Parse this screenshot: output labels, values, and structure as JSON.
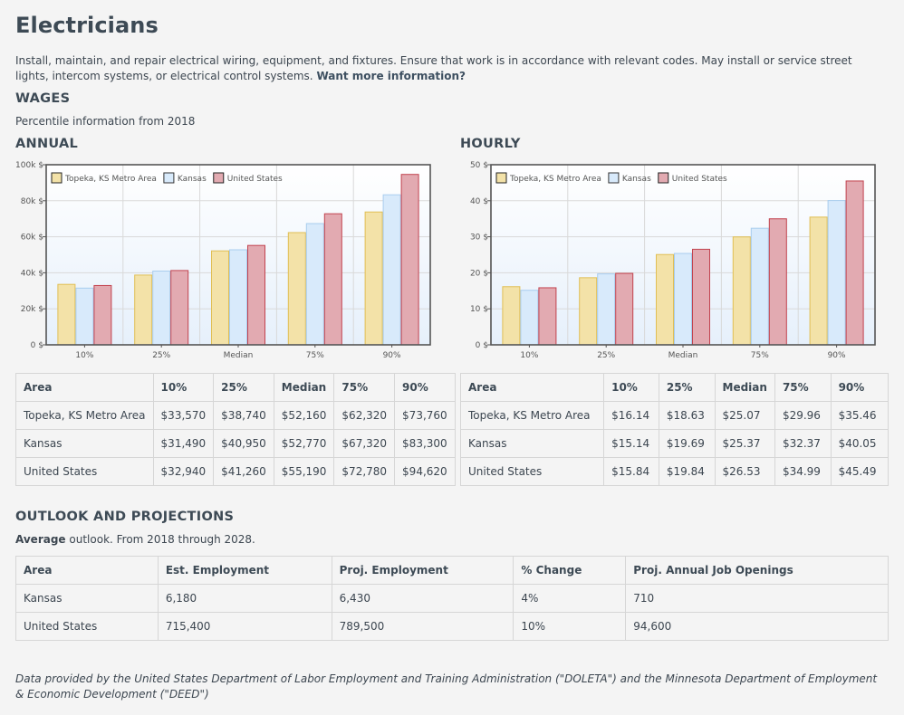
{
  "title": "Electricians",
  "description": "Install, maintain, and repair electrical wiring, equipment, and fixtures. Ensure that work is in accordance with relevant codes. May install or service street lights, intercom systems, or electrical control systems.",
  "more_info_link": "Want more information?",
  "wages": {
    "heading": "WAGES",
    "note": "Percentile information from 2018",
    "annual_heading": "ANNUAL",
    "hourly_heading": "HOURLY",
    "columns": [
      "Area",
      "10%",
      "25%",
      "Median",
      "75%",
      "90%"
    ],
    "annual_rows": [
      [
        "Topeka, KS Metro Area",
        "$33,570",
        "$38,740",
        "$52,160",
        "$62,320",
        "$73,760"
      ],
      [
        "Kansas",
        "$31,490",
        "$40,950",
        "$52,770",
        "$67,320",
        "$83,300"
      ],
      [
        "United States",
        "$32,940",
        "$41,260",
        "$55,190",
        "$72,780",
        "$94,620"
      ]
    ],
    "hourly_rows": [
      [
        "Topeka, KS Metro Area",
        "$16.14",
        "$18.63",
        "$25.07",
        "$29.96",
        "$35.46"
      ],
      [
        "Kansas",
        "$15.14",
        "$19.69",
        "$25.37",
        "$32.37",
        "$40.05"
      ],
      [
        "United States",
        "$15.84",
        "$19.84",
        "$26.53",
        "$34.99",
        "$45.49"
      ]
    ]
  },
  "outlook": {
    "heading": "OUTLOOK AND PROJECTIONS",
    "lead_bold": "Average",
    "lead_rest": " outlook. From 2018 through 2028.",
    "columns": [
      "Area",
      "Est. Employment",
      "Proj. Employment",
      "% Change",
      "Proj. Annual Job Openings"
    ],
    "rows": [
      [
        "Kansas",
        "6,180",
        "6,430",
        "4%",
        "710"
      ],
      [
        "United States",
        "715,400",
        "789,500",
        "10%",
        "94,600"
      ]
    ]
  },
  "source_note": "Data provided by the United States Department of Labor Employment and Training Administration (\"DOLETA\") and the Minnesota Department of Employment & Economic Development (\"DEED\")",
  "colors": {
    "topeka_fill": "#f3e2a8",
    "topeka_stroke": "#e0bf55",
    "kansas_fill": "#d8eafb",
    "kansas_stroke": "#a9cdee",
    "us_fill": "#e2aab1",
    "us_stroke": "#c2434f",
    "plot_bg_top": "#ffffff",
    "plot_bg_bottom": "#e6f0fb",
    "frame": "#555555",
    "grid": "#d9d9d9",
    "text": "#555555"
  },
  "chart_data": [
    {
      "type": "bar",
      "name": "annual",
      "categories": [
        "10%",
        "25%",
        "Median",
        "75%",
        "90%"
      ],
      "series": [
        {
          "name": "Topeka, KS Metro Area",
          "values": [
            33570,
            38740,
            52160,
            62320,
            73760
          ]
        },
        {
          "name": "Kansas",
          "values": [
            31490,
            40950,
            52770,
            67320,
            83300
          ]
        },
        {
          "name": "United States",
          "values": [
            32940,
            41260,
            55190,
            72780,
            94620
          ]
        }
      ],
      "ylim": [
        0,
        100000
      ],
      "yticks": [
        0,
        20000,
        40000,
        60000,
        80000,
        100000
      ],
      "ytick_labels": [
        "0 $",
        "20k $",
        "40k $",
        "60k $",
        "80k $",
        "100k $"
      ],
      "grid": true,
      "legend": "top-left"
    },
    {
      "type": "bar",
      "name": "hourly",
      "categories": [
        "10%",
        "25%",
        "Median",
        "75%",
        "90%"
      ],
      "series": [
        {
          "name": "Topeka, KS Metro Area",
          "values": [
            16.14,
            18.63,
            25.07,
            29.96,
            35.46
          ]
        },
        {
          "name": "Kansas",
          "values": [
            15.14,
            19.69,
            25.37,
            32.37,
            40.05
          ]
        },
        {
          "name": "United States",
          "values": [
            15.84,
            19.84,
            26.53,
            34.99,
            45.49
          ]
        }
      ],
      "ylim": [
        0,
        50
      ],
      "yticks": [
        0,
        10,
        20,
        30,
        40,
        50
      ],
      "ytick_labels": [
        "0 $",
        "10 $",
        "20 $",
        "30 $",
        "40 $",
        "50 $"
      ],
      "grid": true,
      "legend": "top-left"
    }
  ]
}
